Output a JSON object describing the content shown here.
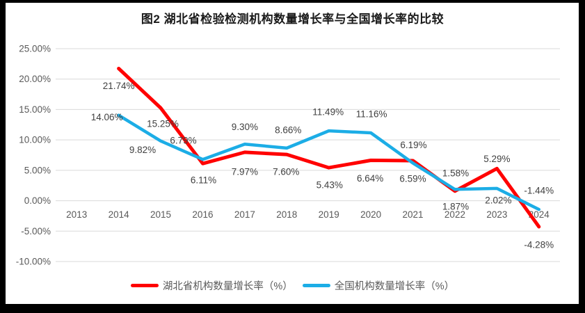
{
  "title": "图2  湖北省检验检测机构数量增长率与全国增长率的比较",
  "colors": {
    "grid": "#D9D9D9",
    "axis_text": "#595959",
    "label_text": "#404040",
    "background": "#FFFFFF",
    "frame": "#000000",
    "hubei_red": "#FF0000",
    "national_blue": "#1CADE6"
  },
  "chart_data": {
    "type": "line",
    "title": "图2  湖北省检验检测机构数量增长率与全国增长率的比较",
    "categories": [
      "2013",
      "2014",
      "2015",
      "2016",
      "2017",
      "2018",
      "2019",
      "2020",
      "2021",
      "2022",
      "2023",
      "2024"
    ],
    "ylim": [
      -10,
      25
    ],
    "grid": true,
    "legend_position": "bottom",
    "y_ticks": [
      {
        "value": 25,
        "label": "25.00%"
      },
      {
        "value": 20,
        "label": "20.00%"
      },
      {
        "value": 15,
        "label": "15.00%"
      },
      {
        "value": 10,
        "label": "10.00%"
      },
      {
        "value": 5,
        "label": "5.00%"
      },
      {
        "value": 0,
        "label": "0.00%"
      },
      {
        "value": -5,
        "label": "-5.00%"
      },
      {
        "value": -10,
        "label": "-10.00%"
      }
    ],
    "series": [
      {
        "name": "湖北省机构数量增长率（%）",
        "color": "#FF0000",
        "stroke_width": 5,
        "values": [
          null,
          21.74,
          15.25,
          6.11,
          7.97,
          7.6,
          5.43,
          6.64,
          6.59,
          1.58,
          5.29,
          -4.28
        ],
        "labels": [
          null,
          "21.74%",
          "15.25%",
          "6.11%",
          "7.97%",
          "7.60%",
          "5.43%",
          "6.64%",
          "6.59%",
          "1.58%",
          "5.29%",
          "-4.28%"
        ],
        "label_offsets": [
          null,
          [
            0,
            25
          ],
          [
            3,
            23
          ],
          [
            1,
            24
          ],
          [
            0,
            28
          ],
          [
            -1,
            25
          ],
          [
            1,
            25
          ],
          [
            -1,
            26
          ],
          [
            0,
            26
          ],
          [
            1,
            -26
          ],
          [
            0,
            -14
          ],
          [
            0,
            26
          ]
        ]
      },
      {
        "name": "全国机构数量增长率（%）",
        "color": "#1CADE6",
        "stroke_width": 4.5,
        "values": [
          null,
          14.06,
          9.82,
          6.79,
          9.3,
          8.66,
          11.49,
          11.16,
          6.19,
          1.87,
          2.02,
          -1.44
        ],
        "labels": [
          null,
          "14.06%",
          "9.82%",
          "6.79%",
          "9.30%",
          "8.66%",
          "11.49%",
          "11.16%",
          "6.19%",
          "1.87%",
          "2.02%",
          "-1.44%"
        ],
        "label_offsets": [
          null,
          [
            -17,
            3
          ],
          [
            -26,
            13
          ],
          [
            -28,
            -27
          ],
          [
            0,
            -25
          ],
          [
            2,
            -26
          ],
          [
            -1,
            -27
          ],
          [
            1,
            -27
          ],
          [
            1,
            -26
          ],
          [
            1,
            25
          ],
          [
            2,
            17
          ],
          [
            0,
            -27
          ]
        ]
      }
    ]
  }
}
